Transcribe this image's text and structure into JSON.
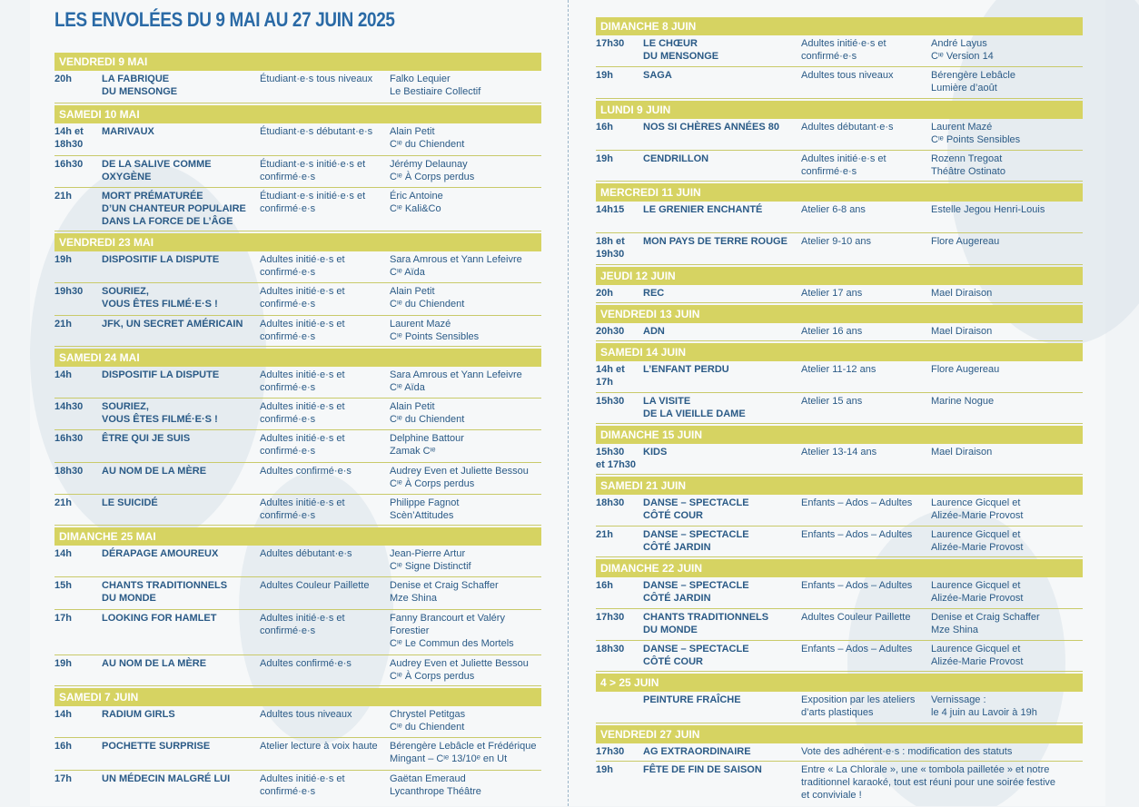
{
  "title": "LES ENVOLÉES DU 9 MAI AU 27 JUIN 2025",
  "left": [
    {
      "day": "VENDREDI 9 MAI",
      "events": [
        {
          "time": "20h",
          "show": "LA FABRIQUE\nDU MENSONGE",
          "aud": "Étudiant·e·s tous niveaux",
          "who": "Falko Lequier\nLe Bestiaire Collectif",
          "h": 36
        }
      ]
    },
    {
      "day": "SAMEDI 10 MAI",
      "events": [
        {
          "time": "14h et\n18h30",
          "show": "MARIVAUX",
          "aud": "Étudiant·e·s débutant·e·s",
          "who": "Alain Petit\nCᶦᵉ du Chiendent",
          "h": 36
        },
        {
          "time": "16h30",
          "show": "DE LA SALIVE COMME\nOXYGÈNE",
          "aud": "Étudiant·e·s initié·e·s et\nconfirmé·e·s",
          "who": "Jérémy Delaunay\nCᶦᵉ À Corps perdus",
          "h": 35
        },
        {
          "time": "21h",
          "show": "MORT PRÉMATURÉE\nD’UN CHANTEUR POPULAIRE\nDANS LA FORCE DE L’ÂGE",
          "aud": "Étudiant·e·s initié·e·s et\nconfirmé·e·s",
          "who": "Éric Antoine\nCᶦᵉ Kali&Co",
          "h": 48
        }
      ]
    },
    {
      "day": "VENDREDI 23 MAI",
      "events": [
        {
          "time": "19h",
          "show": "DISPOSITIF LA DISPUTE",
          "aud": "Adultes initié·e·s et\nconfirmé·e·s",
          "who": "Sara Amrous et Yann Lefeivre\nCᶦᵉ Aïda",
          "h": 35
        },
        {
          "time": "19h30",
          "show": "SOURIEZ,\nVOUS ÊTES FILMÉ·E·S !",
          "aud": "Adultes initié·e·s et\nconfirmé·e·s",
          "who": "Alain Petit\n Cᶦᵉ du Chiendent",
          "h": 36
        },
        {
          "time": "21h",
          "show": "JFK, UN SECRET AMÉRICAIN",
          "aud": "Adultes initié·e·s et\nconfirmé·e·s",
          "who": "Laurent Mazé\nCᶦᵉ Points Sensibles",
          "h": 34
        }
      ]
    },
    {
      "day": "SAMEDI 24 MAI",
      "events": [
        {
          "time": "14h",
          "show": "DISPOSITIF LA DISPUTE",
          "aud": "Adultes initié·e·s et\nconfirmé·e·s",
          "who": "Sara Amrous et Yann Lefeivre\nCᶦᵉ Aïda",
          "h": 35
        },
        {
          "time": "14h30",
          "show": "SOURIEZ,\nVOUS ÊTES FILMÉ·E·S !",
          "aud": "Adultes initié·e·s et\nconfirmé·e·s",
          "who": "Alain Petit\nCᶦᵉ du Chiendent",
          "h": 35
        },
        {
          "time": "16h30",
          "show": "ÊTRE QUI JE SUIS",
          "aud": "Adultes initié·e·s et\nconfirmé·e·s",
          "who": "Delphine Battour\nZamak Cᶦᵉ",
          "h": 36
        },
        {
          "time": "18h30",
          "show": "AU NOM DE LA MÈRE",
          "aud": "Adultes confirmé·e·s",
          "who": "Audrey Even et Juliette Bessou\nCᶦᵉ À Corps perdus",
          "h": 35
        },
        {
          "time": "21h",
          "show": "LE SUICIDÉ",
          "aud": "Adultes initié·e·s et\nconfirmé·e·s",
          "who": "Philippe Fagnot\nScèn’Attitudes",
          "h": 34
        }
      ]
    },
    {
      "day": "DIMANCHE 25 MAI",
      "events": [
        {
          "time": "14h",
          "show": "DÉRAPAGE AMOUREUX",
          "aud": "Adultes débutant·e·s",
          "who": "Jean-Pierre Artur\nCᶦᵉ Signe Distinctif",
          "h": 35
        },
        {
          "time": "15h",
          "show": "CHANTS TRADITIONNELS\nDU MONDE",
          "aud": "Adultes Couleur Paillette",
          "who": "Denise et Craig Schaffer\nMze Shina",
          "h": 36
        },
        {
          "time": "17h",
          "show": "LOOKING FOR HAMLET",
          "aud": "Adultes initié·e·s et\nconfirmé·e·s",
          "who": "Fanny Brancourt et Valéry\nForestier\nCᶦᵉ Le Commun des Mortels",
          "h": 50
        },
        {
          "time": "19h",
          "show": "AU NOM DE LA MÈRE",
          "aud": "Adultes confirmé·e·s",
          "who": "Audrey Even et Juliette Bessou\nCᶦᵉ À Corps perdus",
          "h": 34
        }
      ]
    },
    {
      "day": "SAMEDI 7 JUIN",
      "events": [
        {
          "time": "14h",
          "show": "RADIUM GIRLS",
          "aud": "Adultes tous niveaux",
          "who": "Chrystel Petitgas\nCᶦᵉ du Chiendent",
          "h": 35
        },
        {
          "time": "16h",
          "show": "POCHETTE SURPRISE",
          "aud": "Atelier lecture à voix haute",
          "who": "Bérengère Lebâcle et Frédérique\nMingant – Cᶦᵉ 13/10ᵉ en Ut",
          "h": 36
        },
        {
          "time": "17h",
          "show": "UN MÉDECIN MALGRÉ LUI",
          "aud": "Adultes initié·e·s et\nconfirmé·e·s",
          "who": "Gaëtan Emeraud\nLycanthrope Théâtre",
          "h": 34
        }
      ]
    }
  ],
  "right": [
    {
      "day": "DIMANCHE 8 JUIN",
      "events": [
        {
          "time": "17h30",
          "show": "LE CHŒUR\nDU MENSONGE",
          "aud": "Adultes initié·e·s et\nconfirmé·e·s",
          "who": "André Layus\nCᶦᵉ Version 14",
          "h": 35
        },
        {
          "time": "19h",
          "show": "SAGA",
          "aud": "Adultes tous niveaux",
          "who": "Bérengère Lebâcle\nLumière d’août",
          "h": 35
        }
      ]
    },
    {
      "day": "LUNDI 9 JUIN",
      "events": [
        {
          "time": "16h",
          "show": "NOS SI CHÈRES ANNÉES 80",
          "aud": "Adultes débutant·e·s",
          "who": "Laurent Mazé\nCᶦᵉ Points Sensibles",
          "h": 35
        },
        {
          "time": "19h",
          "show": "CENDRILLON",
          "aud": "Adultes initié·e·s et\nconfirmé·e·s",
          "who": "Rozenn Tregoat\nThéâtre Ostinato",
          "h": 34
        }
      ]
    },
    {
      "day": "MERCREDI 11 JUIN",
      "events": [
        {
          "time": "14h15",
          "show": "LE GRENIER ENCHANTÉ",
          "aud": "Atelier 6-8 ans",
          "who": "Estelle Jegou Henri-Louis",
          "h": 35
        },
        {
          "time": "18h et\n19h30",
          "show": "MON PAYS DE TERRE ROUGE",
          "aud": "Atelier 9-10 ans",
          "who": "Flore Augereau",
          "h": 35
        }
      ]
    },
    {
      "day": "JEUDI 12 JUIN",
      "events": [
        {
          "time": "20h",
          "show": "REC",
          "aud": "Atelier 17 ans",
          "who": "Mael Diraison",
          "h": 20
        }
      ]
    },
    {
      "day": "VENDREDI 13 JUIN",
      "events": [
        {
          "time": "20h30",
          "show": "ADN",
          "aud": "Atelier 16 ans",
          "who": "Mael Diraison",
          "h": 20
        }
      ]
    },
    {
      "day": "SAMEDI 14 JUIN",
      "events": [
        {
          "time": "14h et\n17h",
          "show": "L’ENFANT PERDU",
          "aud": "Atelier 11-12 ans",
          "who": "Flore Augereau",
          "h": 35
        },
        {
          "time": "15h30",
          "show": "LA VISITE\nDE LA VIEILLE DAME",
          "aud": "Atelier 15 ans",
          "who": "Marine Nogue",
          "h": 34
        }
      ]
    },
    {
      "day": "DIMANCHE 15 JUIN",
      "events": [
        {
          "time": "15h30\net 17h30",
          "show": "KIDS",
          "aud": "Atelier 13-14 ans",
          "who": "Mael Diraison",
          "h": 34
        }
      ]
    },
    {
      "day": "SAMEDI 21 JUIN",
      "events": [
        {
          "time": "18h30",
          "show": "DANSE – SPECTACLE\nCÔTÉ COUR",
          "aud": "Enfants – Ados – Adultes",
          "who": "Laurence Gicquel et\nAlizée-Marie Provost",
          "h": 35
        },
        {
          "time": "21h",
          "show": "DANSE – SPECTACLE\nCÔTÉ JARDIN",
          "aud": "Enfants – Ados – Adultes",
          "who": "Laurence Gicquel et\nAlizée-Marie Provost",
          "h": 34
        }
      ]
    },
    {
      "day": "DIMANCHE 22 JUIN",
      "events": [
        {
          "time": "16h",
          "show": "DANSE – SPECTACLE\nCÔTÉ JARDIN",
          "aud": "Enfants – Ados – Adultes",
          "who": "Laurence Gicquel et\nAlizée-Marie Provost",
          "h": 35
        },
        {
          "time": "17h30",
          "show": "CHANTS TRADITIONNELS\nDU MONDE",
          "aud": "Adultes Couleur Paillette",
          "who": "Denise et Craig Schaffer\nMze Shina",
          "h": 35
        },
        {
          "time": "18h30",
          "show": "DANSE – SPECTACLE\nCÔTÉ COUR",
          "aud": "Enfants – Ados – Adultes",
          "who": "Laurence Gicquel et\nAlizée-Marie Provost",
          "h": 34
        }
      ]
    },
    {
      "day": "4 > 25 JUIN",
      "events": [
        {
          "time": "",
          "show": "PEINTURE FRAÎCHE",
          "aud": "Exposition par les ateliers\nd’arts plastiques",
          "who": "Vernissage :\nle 4 juin au Lavoir à 19h",
          "h": 35
        }
      ]
    },
    {
      "day": "VENDREDI 27 JUIN",
      "events": [
        {
          "time": "17h30",
          "show": "AG EXTRAORDINAIRE",
          "wide": "Vote des adhérent·e·s : modification des statuts",
          "h": 20
        },
        {
          "time": "19h",
          "show": "FÊTE DE FIN DE SAISON",
          "wide": "Entre « La Chlorale », une « tombola pailletée » et notre\ntraditionnel karaoké, tout est réuni pour une soirée festive\net conviviale !",
          "h": 50
        }
      ]
    }
  ]
}
